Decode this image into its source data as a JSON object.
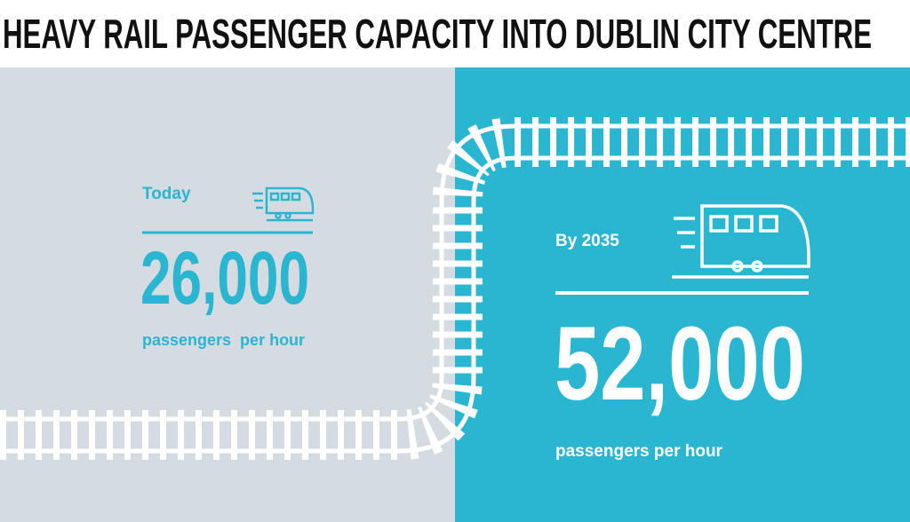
{
  "title": "HEAVY RAIL PASSENGER CAPACITY INTO DUBLIN CITY CENTRE",
  "today": {
    "label": "Today",
    "value": "26,000",
    "unit": "passengers  per hour"
  },
  "future": {
    "label": "By 2035",
    "value": "52,000",
    "unit": "passengers per hour"
  }
}
